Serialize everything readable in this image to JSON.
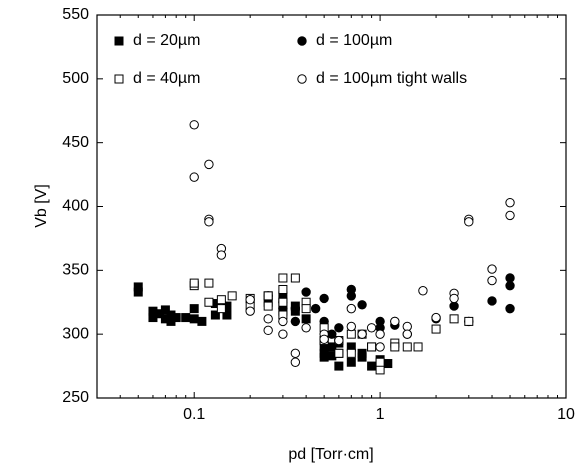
{
  "chart_data": {
    "type": "scatter",
    "xlabel": "pd [Torr·cm]",
    "ylabel": "Vb [V]",
    "xscale": "log",
    "xlim": [
      0.03,
      10
    ],
    "xticks": [
      0.1,
      1,
      10
    ],
    "xminor_ticks": [
      0.04,
      0.05,
      0.06,
      0.07,
      0.08,
      0.09,
      0.2,
      0.3,
      0.4,
      0.5,
      0.6,
      0.7,
      0.8,
      0.9,
      2,
      3,
      4,
      5,
      6,
      7,
      8,
      9
    ],
    "ylim": [
      250,
      550
    ],
    "yticks": [
      250,
      300,
      350,
      400,
      450,
      500,
      550
    ],
    "legend": "upper left",
    "series": [
      {
        "name": "d = 20µm",
        "marker": "square",
        "filled": true,
        "color": "#000",
        "x": [
          0.05,
          0.05,
          0.06,
          0.06,
          0.065,
          0.07,
          0.07,
          0.075,
          0.075,
          0.08,
          0.09,
          0.1,
          0.1,
          0.11,
          0.13,
          0.13,
          0.15,
          0.15,
          0.25,
          0.25,
          0.3,
          0.3,
          0.3,
          0.35,
          0.35,
          0.4,
          0.5,
          0.5,
          0.5,
          0.5,
          0.55,
          0.55,
          0.6,
          0.6,
          0.6,
          0.7,
          0.7,
          0.8,
          0.8,
          0.9,
          0.9,
          1.0,
          1.1
        ],
        "values": [
          333,
          337,
          313,
          318,
          316,
          312,
          319,
          310,
          315,
          313,
          313,
          320,
          312,
          310,
          324,
          315,
          315,
          322,
          330,
          325,
          318,
          325,
          330,
          322,
          318,
          312,
          295,
          290,
          285,
          282,
          283,
          290,
          275,
          285,
          293,
          278,
          290,
          282,
          285,
          275,
          290,
          280,
          277
        ]
      },
      {
        "name": "d = 100µm",
        "marker": "circle",
        "filled": true,
        "color": "#000",
        "x": [
          0.25,
          0.3,
          0.3,
          0.35,
          0.35,
          0.4,
          0.45,
          0.5,
          0.5,
          0.55,
          0.6,
          0.7,
          0.7,
          0.8,
          0.8,
          1.0,
          1.0,
          1.2,
          1.2,
          1.4,
          2.0,
          2.5,
          3,
          4,
          5,
          5,
          5
        ],
        "values": [
          330,
          325,
          320,
          320,
          310,
          333,
          320,
          328,
          310,
          300,
          305,
          335,
          330,
          323,
          300,
          310,
          305,
          310,
          307,
          300,
          312,
          322,
          310,
          326,
          344,
          338,
          320
        ]
      },
      {
        "name": "d = 40µm",
        "marker": "square",
        "filled": false,
        "color": "#000",
        "x": [
          0.1,
          0.1,
          0.12,
          0.12,
          0.14,
          0.14,
          0.16,
          0.2,
          0.2,
          0.25,
          0.25,
          0.3,
          0.3,
          0.3,
          0.3,
          0.35,
          0.4,
          0.4,
          0.5,
          0.5,
          0.6,
          0.6,
          0.7,
          0.7,
          0.8,
          0.9,
          1.0,
          1.0,
          1.2,
          1.2,
          1.4,
          1.6,
          2.0,
          2.5,
          3
        ],
        "values": [
          338,
          340,
          325,
          340,
          327,
          320,
          330,
          322,
          328,
          322,
          330,
          335,
          344,
          325,
          315,
          344,
          325,
          320,
          305,
          295,
          295,
          285,
          300,
          285,
          300,
          290,
          272,
          278,
          293,
          290,
          290,
          290,
          304,
          312,
          310
        ]
      },
      {
        "name": "d = 100µm tight walls",
        "marker": "circle",
        "filled": false,
        "color": "#000",
        "x": [
          0.1,
          0.1,
          0.12,
          0.12,
          0.12,
          0.14,
          0.14,
          0.2,
          0.2,
          0.25,
          0.25,
          0.3,
          0.3,
          0.35,
          0.35,
          0.4,
          0.5,
          0.5,
          0.6,
          0.7,
          0.7,
          0.8,
          0.9,
          1.0,
          1.0,
          1.2,
          1.4,
          1.4,
          1.7,
          2.0,
          2.5,
          2.5,
          3,
          3,
          4,
          4,
          5,
          5
        ],
        "values": [
          464,
          423,
          433,
          390,
          388,
          367,
          362,
          327,
          318,
          312,
          303,
          300,
          310,
          285,
          278,
          305,
          300,
          296,
          295,
          320,
          306,
          300,
          305,
          290,
          300,
          310,
          306,
          300,
          334,
          313,
          332,
          328,
          390,
          388,
          351,
          342,
          403,
          393
        ]
      }
    ]
  }
}
